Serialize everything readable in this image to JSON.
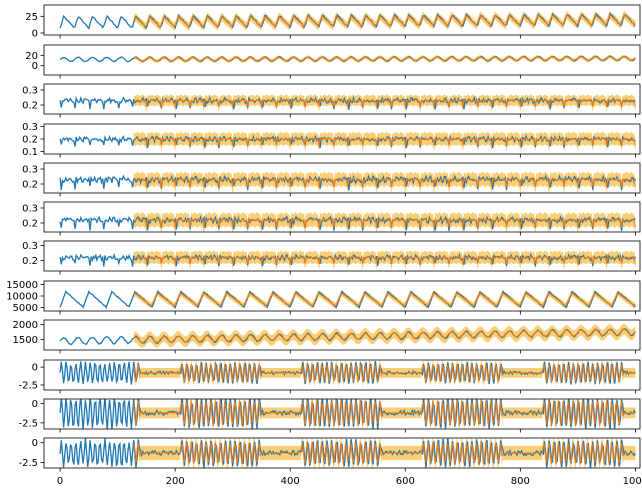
{
  "chart_data": {
    "type": "line",
    "colors": {
      "observed": "#1f77b4",
      "forecast": "#ff7f0e",
      "band": "#fbbf45"
    },
    "xlim": [
      -28,
      1008
    ],
    "xticks": [
      0,
      200,
      400,
      600,
      800,
      1000
    ],
    "forecast_start": 128,
    "panels": [
      {
        "ylim": [
          -3,
          42
        ],
        "yticks": [
          0,
          25
        ],
        "base": 16,
        "amp": 9,
        "trend": 4,
        "band": 6,
        "shape": "saw",
        "period": 25,
        "noise": 0.12
      },
      {
        "ylim": [
          -18,
          40
        ],
        "yticks": [
          0,
          20
        ],
        "base": 12,
        "amp": 4,
        "trend": 2,
        "band": 3.5,
        "shape": "sine",
        "period": 25,
        "noise": 0.15
      },
      {
        "ylim": [
          0.14,
          0.34
        ],
        "yticks": [
          0.2,
          0.3
        ],
        "base": 0.23,
        "amp": 0.025,
        "trend": 0,
        "band": 0.035,
        "shape": "spike",
        "period": 25,
        "noise": 0.5
      },
      {
        "ylim": [
          0.08,
          0.32
        ],
        "yticks": [
          0.1,
          0.2,
          0.3
        ],
        "base": 0.2,
        "amp": 0.03,
        "trend": 0,
        "band": 0.05,
        "shape": "spike",
        "period": 25,
        "noise": 0.5
      },
      {
        "ylim": [
          0.14,
          0.34
        ],
        "yticks": [
          0.2,
          0.3
        ],
        "base": 0.23,
        "amp": 0.03,
        "trend": 0,
        "band": 0.045,
        "shape": "spike",
        "period": 25,
        "noise": 0.5
      },
      {
        "ylim": [
          0.14,
          0.34
        ],
        "yticks": [
          0.2,
          0.3
        ],
        "base": 0.22,
        "amp": 0.03,
        "trend": 0,
        "band": 0.045,
        "shape": "spike",
        "period": 25,
        "noise": 0.5
      },
      {
        "ylim": [
          0.13,
          0.33
        ],
        "yticks": [
          0.2,
          0.3
        ],
        "base": 0.22,
        "amp": 0.025,
        "trend": 0,
        "band": 0.04,
        "shape": "spike",
        "period": 25,
        "noise": 0.5
      },
      {
        "ylim": [
          3500,
          16500
        ],
        "yticks": [
          5000,
          10000,
          15000
        ],
        "base": 8500,
        "amp": 3300,
        "trend": 0,
        "band": 1300,
        "shape": "saw",
        "period": 40,
        "noise": 0.06
      },
      {
        "ylim": [
          1150,
          2150
        ],
        "yticks": [
          1500,
          2000
        ],
        "base": 1450,
        "amp": 110,
        "trend": 300,
        "band": 180,
        "shape": "sine",
        "period": 25,
        "noise": 0.2
      },
      {
        "ylim": [
          -3.2,
          1.0
        ],
        "yticks": [
          -2.5,
          0.0
        ],
        "base": -0.8,
        "amp": 0.9,
        "trend": 0,
        "band": 0.7,
        "shape": "burst",
        "period": 14,
        "noise": 0.25
      },
      {
        "ylim": [
          -3.3,
          0.6
        ],
        "yticks": [
          -2.5,
          0.0
        ],
        "base": -1.2,
        "amp": 1.2,
        "trend": 0,
        "band": 0.7,
        "shape": "burst",
        "period": 14,
        "noise": 0.25
      },
      {
        "ylim": [
          -3.2,
          0.6
        ],
        "yticks": [
          -2.5,
          0.0
        ],
        "base": -1.3,
        "amp": 1.0,
        "trend": 0,
        "band": 0.9,
        "shape": "burst",
        "period": 14,
        "noise": 0.3
      }
    ]
  }
}
